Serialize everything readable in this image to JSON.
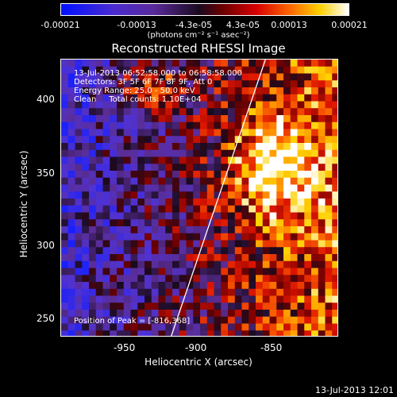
{
  "colorbar": {
    "ticks": [
      "-0.00021",
      "-0.00013",
      "-4.3e-05",
      "4.3e-05",
      "0.00013",
      "0.00021"
    ],
    "units": "(photons cm⁻² s⁻¹ asec⁻²)"
  },
  "chart_data": {
    "type": "heatmap",
    "title": "Reconstructed RHESSI Image",
    "xlabel": "Heliocentric X (arcsec)",
    "ylabel": "Heliocentric Y (arcsec)",
    "xlim": [
      -993,
      -808
    ],
    "ylim": [
      237,
      422
    ],
    "xticks": [
      -950,
      -900,
      -850
    ],
    "xtick_labels": [
      "-950",
      "-900",
      "-850"
    ],
    "yticks": [
      250,
      300,
      350,
      400
    ],
    "ytick_labels": [
      "250",
      "300",
      "350",
      "400"
    ],
    "annotations": [
      "13-Jul-2013 06:52:58.000 to 06:58:58.000",
      "Detectors: 3F 5F 6F 7F 8F 9F, Att 0",
      "Energy Range: 25.0 - 50.0 keV",
      "Clean     Total counts: 1.10E+04"
    ],
    "peak_label": "Position of Peak = [-816,368]",
    "limb_line": [
      [
        -920,
        237
      ],
      [
        -857,
        422
      ]
    ]
  },
  "footer": "13-Jul-2013 12:01"
}
